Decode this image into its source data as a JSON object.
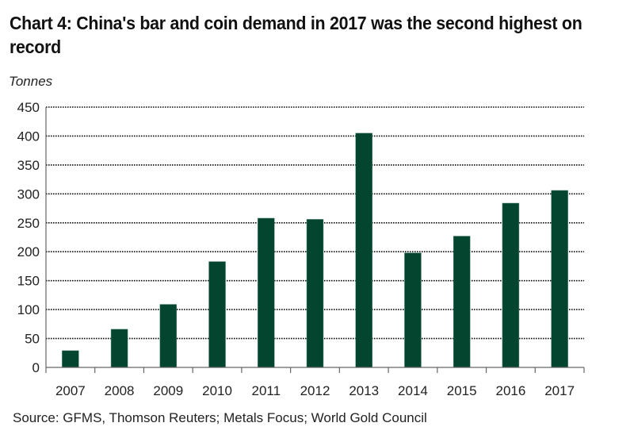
{
  "chart_data": {
    "type": "bar",
    "title": "Chart 4: China's bar and coin demand in 2017 was the second highest on record",
    "xlabel": "",
    "ylabel": "Tonnes",
    "categories": [
      "2007",
      "2008",
      "2009",
      "2010",
      "2011",
      "2012",
      "2013",
      "2014",
      "2015",
      "2016",
      "2017"
    ],
    "values": [
      29,
      66,
      109,
      183,
      258,
      256,
      405,
      198,
      227,
      284,
      306
    ],
    "ylim": [
      0,
      450
    ],
    "yticks": [
      0,
      50,
      100,
      150,
      200,
      250,
      300,
      350,
      400,
      450
    ],
    "ytick_labels": [
      "0",
      "50",
      "100",
      "150",
      "200",
      "250",
      "300",
      "350",
      "400",
      "450"
    ],
    "grid": true,
    "grid_style": "dotted horizontal",
    "legend": "none",
    "bar_color": "#03452f",
    "source": "Source: GFMS, Thomson Reuters; Metals Focus; World Gold Council"
  }
}
